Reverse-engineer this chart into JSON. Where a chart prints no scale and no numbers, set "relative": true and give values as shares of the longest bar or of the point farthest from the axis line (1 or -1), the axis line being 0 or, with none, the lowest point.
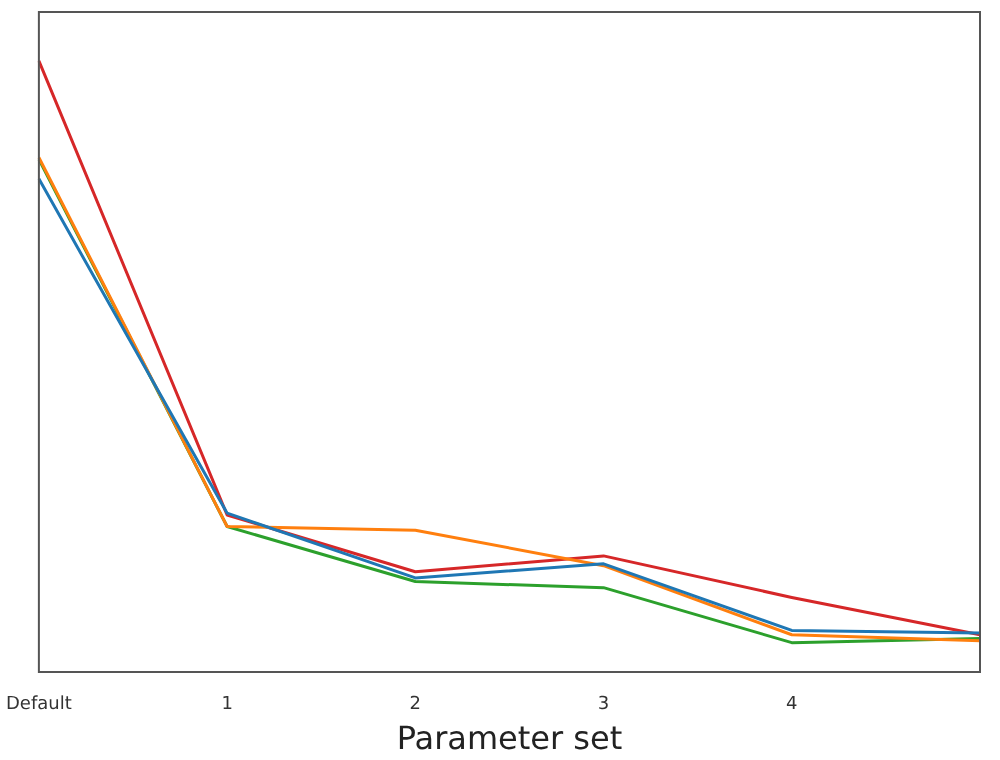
{
  "chart_data": {
    "type": "line",
    "relative": true,
    "xlabel": "Parameter set",
    "categories": [
      "Default",
      "1",
      "2",
      "3",
      "4",
      null
    ],
    "legend": false,
    "grid": false,
    "marker": "none",
    "line_style": "solid",
    "series": [
      {
        "color": "#1f77b4",
        "values": [
          0.807,
          0.26,
          0.154,
          0.177,
          0.068,
          0.064
        ]
      },
      {
        "color": "#ff7f0e",
        "values": [
          0.842,
          0.238,
          0.232,
          0.174,
          0.061,
          0.051
        ]
      },
      {
        "color": "#2ca02c",
        "values": [
          0.839,
          0.238,
          0.148,
          0.138,
          0.048,
          0.055
        ]
      },
      {
        "color": "#d62728",
        "values": [
          1,
          0.257,
          0.164,
          0.19,
          0.122,
          0.061
        ]
      }
    ]
  }
}
